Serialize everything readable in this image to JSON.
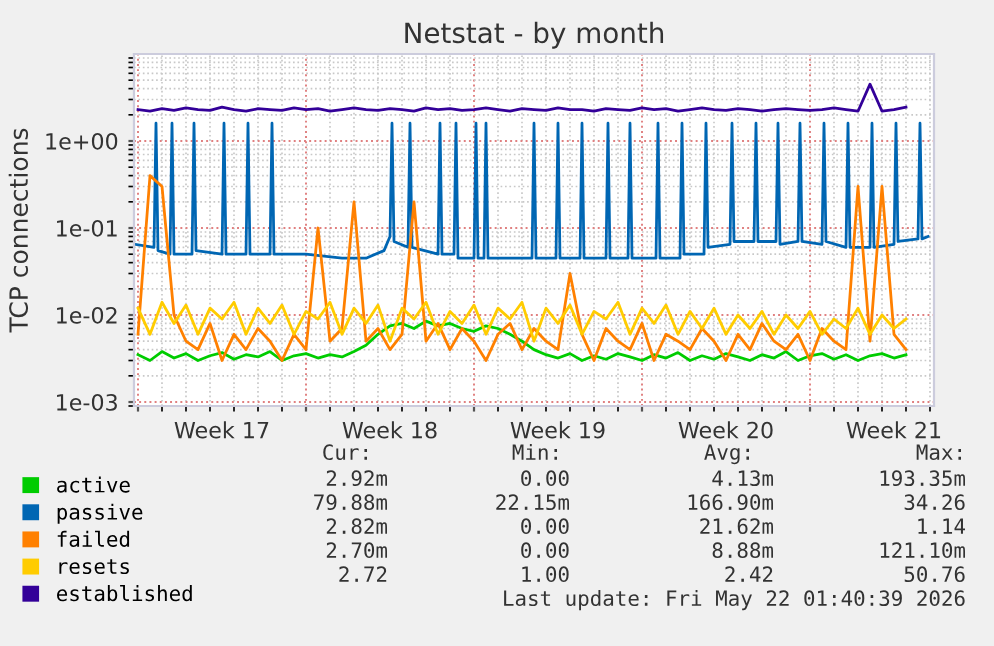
{
  "chart_data": {
    "type": "line",
    "title": "Netstat - by month",
    "ylabel": "TCP connections",
    "log": "y",
    "grid": true,
    "legend": "bottom",
    "marker": "none",
    "line_style": "solid",
    "xlim": [
      "2026-04-19T20:00",
      "2026-05-23T04:00"
    ],
    "xticks": [
      {
        "value": "2026-04-20",
        "label": null
      },
      {
        "value": "2026-04-23T12:00",
        "label": "Week 17"
      },
      {
        "value": "2026-04-27",
        "label": null
      },
      {
        "value": "2026-04-30T12:00",
        "label": "Week 18"
      },
      {
        "value": "2026-05-04",
        "label": null
      },
      {
        "value": "2026-05-07T12:00",
        "label": "Week 19"
      },
      {
        "value": "2026-05-11",
        "label": null
      },
      {
        "value": "2026-05-14T12:00",
        "label": "Week 20"
      },
      {
        "value": "2026-05-18",
        "label": null
      },
      {
        "value": "2026-05-21T12:00",
        "label": "Week 21"
      }
    ],
    "ylim": [
      0.0009,
      10
    ],
    "yticks": [
      {
        "value": 0.001,
        "label": "1e-03"
      },
      {
        "value": 0.01,
        "label": "1e-02"
      },
      {
        "value": 0.1,
        "label": "1e-01"
      },
      {
        "value": 1,
        "label": "1e+00"
      }
    ],
    "x": [
      "2026-04-20T00:00",
      "2026-04-20T12:00",
      "2026-04-21T00:00",
      "2026-04-21T12:00",
      "2026-04-22T00:00",
      "2026-04-22T12:00",
      "2026-04-23T00:00",
      "2026-04-23T12:00",
      "2026-04-24T00:00",
      "2026-04-24T12:00",
      "2026-04-25T00:00",
      "2026-04-25T12:00",
      "2026-04-26T00:00",
      "2026-04-26T12:00",
      "2026-04-27T00:00",
      "2026-04-27T12:00",
      "2026-04-28T00:00",
      "2026-04-28T12:00",
      "2026-04-29T00:00",
      "2026-04-29T12:00",
      "2026-04-30T00:00",
      "2026-04-30T12:00",
      "2026-05-01T00:00",
      "2026-05-01T12:00",
      "2026-05-02T00:00",
      "2026-05-02T12:00",
      "2026-05-03T00:00",
      "2026-05-03T12:00",
      "2026-05-04T00:00",
      "2026-05-04T12:00",
      "2026-05-05T00:00",
      "2026-05-05T12:00",
      "2026-05-06T00:00",
      "2026-05-06T12:00",
      "2026-05-07T00:00",
      "2026-05-07T12:00",
      "2026-05-08T00:00",
      "2026-05-08T12:00",
      "2026-05-09T00:00",
      "2026-05-09T12:00",
      "2026-05-10T00:00",
      "2026-05-10T12:00",
      "2026-05-11T00:00",
      "2026-05-11T12:00",
      "2026-05-12T00:00",
      "2026-05-12T12:00",
      "2026-05-13T00:00",
      "2026-05-13T12:00",
      "2026-05-14T00:00",
      "2026-05-14T12:00",
      "2026-05-15T00:00",
      "2026-05-15T12:00",
      "2026-05-16T00:00",
      "2026-05-16T12:00",
      "2026-05-17T00:00",
      "2026-05-17T12:00",
      "2026-05-18T00:00",
      "2026-05-18T12:00",
      "2026-05-19T00:00",
      "2026-05-19T12:00",
      "2026-05-20T00:00",
      "2026-05-20T12:00",
      "2026-05-21T00:00",
      "2026-05-21T12:00",
      "2026-05-22T00:00"
    ],
    "series": [
      {
        "name": "active",
        "color": "#00cc00",
        "values": [
          0.0035,
          0.003,
          0.0038,
          0.0032,
          0.0036,
          0.003,
          0.0034,
          0.0037,
          0.0031,
          0.0035,
          0.0033,
          0.0038,
          0.003,
          0.0034,
          0.0036,
          0.0032,
          0.0035,
          0.0033,
          0.0038,
          0.0045,
          0.006,
          0.0075,
          0.008,
          0.007,
          0.0085,
          0.0075,
          0.008,
          0.007,
          0.0065,
          0.0075,
          0.007,
          0.006,
          0.005,
          0.004,
          0.0035,
          0.0032,
          0.0036,
          0.003,
          0.0034,
          0.0031,
          0.0036,
          0.0033,
          0.003,
          0.0035,
          0.0032,
          0.0037,
          0.003,
          0.0034,
          0.0031,
          0.0036,
          0.0033,
          0.003,
          0.0035,
          0.0032,
          0.0038,
          0.003,
          0.0034,
          0.0036,
          0.0031,
          0.0035,
          0.003,
          0.0034,
          0.0036,
          0.0032,
          0.0035
        ]
      },
      {
        "name": "passive",
        "color": "#0066b3",
        "x": [
          "2026-04-19T21:00",
          "2026-04-20T16:00",
          "2026-04-20T18:00",
          "2026-04-20T20:00",
          "2026-04-21T08:00",
          "2026-04-21T10:00",
          "2026-04-21T12:00",
          "2026-04-22T06:00",
          "2026-04-22T08:00",
          "2026-04-22T10:00",
          "2026-04-23T12:00",
          "2026-04-23T14:00",
          "2026-04-23T16:00",
          "2026-04-24T12:00",
          "2026-04-24T14:00",
          "2026-04-24T16:00",
          "2026-04-25T12:00",
          "2026-04-25T14:00",
          "2026-04-25T16:00",
          "2026-04-27T00:00",
          "2026-04-28T12:00",
          "2026-04-29T12:00",
          "2026-04-30T06:00",
          "2026-04-30T12:00",
          "2026-04-30T14:00",
          "2026-04-30T16:00",
          "2026-05-01T06:00",
          "2026-05-01T08:00",
          "2026-05-01T10:00",
          "2026-05-02T12:00",
          "2026-05-02T14:00",
          "2026-05-02T16:00",
          "2026-05-03T04:00",
          "2026-05-03T06:00",
          "2026-05-03T08:00",
          "2026-05-04T00:00",
          "2026-05-04T02:00",
          "2026-05-04T04:00",
          "2026-05-04T10:00",
          "2026-05-04T12:00",
          "2026-05-04T14:00",
          "2026-05-06T10:00",
          "2026-05-06T12:00",
          "2026-05-06T14:00",
          "2026-05-07T10:00",
          "2026-05-07T12:00",
          "2026-05-07T14:00",
          "2026-05-08T10:00",
          "2026-05-08T12:00",
          "2026-05-08T14:00",
          "2026-05-09T12:00",
          "2026-05-09T14:00",
          "2026-05-09T16:00",
          "2026-05-10T10:00",
          "2026-05-10T12:00",
          "2026-05-10T14:00",
          "2026-05-11T14:00",
          "2026-05-11T16:00",
          "2026-05-11T18:00",
          "2026-05-12T14:00",
          "2026-05-12T16:00",
          "2026-05-12T18:00",
          "2026-05-13T14:00",
          "2026-05-13T16:00",
          "2026-05-13T18:00",
          "2026-05-14T16:00",
          "2026-05-14T18:00",
          "2026-05-14T20:00",
          "2026-05-15T16:00",
          "2026-05-15T18:00",
          "2026-05-15T20:00",
          "2026-05-16T14:00",
          "2026-05-16T16:00",
          "2026-05-16T18:00",
          "2026-05-17T12:00",
          "2026-05-17T14:00",
          "2026-05-17T16:00",
          "2026-05-18T12:00",
          "2026-05-18T14:00",
          "2026-05-18T16:00",
          "2026-05-19T12:00",
          "2026-05-19T14:00",
          "2026-05-19T16:00",
          "2026-05-20T12:00",
          "2026-05-20T14:00",
          "2026-05-20T16:00",
          "2026-05-21T12:00",
          "2026-05-21T14:00",
          "2026-05-21T16:00",
          "2026-05-22T12:00",
          "2026-05-22T14:00",
          "2026-05-22T16:00",
          "2026-05-22T22:00"
        ],
        "values": [
          0.065,
          0.06,
          1.6,
          0.055,
          0.05,
          1.6,
          0.05,
          0.05,
          1.6,
          0.055,
          0.05,
          1.6,
          0.05,
          0.05,
          1.6,
          0.05,
          0.05,
          1.6,
          0.05,
          0.05,
          0.045,
          0.045,
          0.055,
          0.08,
          1.6,
          0.07,
          0.06,
          1.6,
          0.06,
          0.05,
          1.6,
          0.05,
          0.05,
          1.6,
          0.045,
          0.045,
          1.6,
          0.045,
          0.045,
          1.6,
          0.045,
          0.045,
          1.6,
          0.045,
          0.045,
          1.6,
          0.045,
          0.045,
          1.6,
          0.045,
          0.045,
          1.6,
          0.045,
          0.045,
          1.6,
          0.045,
          0.045,
          1.6,
          0.045,
          0.045,
          1.6,
          0.05,
          0.05,
          1.6,
          0.06,
          0.065,
          1.6,
          0.07,
          0.07,
          1.6,
          0.07,
          0.07,
          1.6,
          0.065,
          0.07,
          1.6,
          0.07,
          0.065,
          1.6,
          0.07,
          0.06,
          1.6,
          0.06,
          0.06,
          1.6,
          0.06,
          0.065,
          1.6,
          0.07,
          0.075,
          1.6,
          0.075,
          0.08
        ]
      },
      {
        "name": "failed",
        "color": "#ff8000",
        "values": [
          0.006,
          0.4,
          0.3,
          0.01,
          0.005,
          0.004,
          0.008,
          0.003,
          0.006,
          0.004,
          0.007,
          0.005,
          0.003,
          0.006,
          0.004,
          0.1,
          0.005,
          0.007,
          0.2,
          0.005,
          0.007,
          0.004,
          0.006,
          0.2,
          0.005,
          0.008,
          0.004,
          0.007,
          0.005,
          0.003,
          0.006,
          0.008,
          0.004,
          0.007,
          0.005,
          0.004,
          0.03,
          0.006,
          0.003,
          0.007,
          0.005,
          0.004,
          0.008,
          0.003,
          0.006,
          0.005,
          0.004,
          0.007,
          0.005,
          0.003,
          0.006,
          0.004,
          0.008,
          0.005,
          0.004,
          0.006,
          0.003,
          0.007,
          0.005,
          0.004,
          0.3,
          0.005,
          0.3,
          0.006,
          0.004
        ]
      },
      {
        "name": "resets",
        "color": "#ffcc00",
        "values": [
          0.012,
          0.006,
          0.014,
          0.008,
          0.013,
          0.006,
          0.012,
          0.009,
          0.014,
          0.006,
          0.012,
          0.008,
          0.013,
          0.006,
          0.011,
          0.009,
          0.014,
          0.006,
          0.012,
          0.008,
          0.013,
          0.005,
          0.012,
          0.009,
          0.014,
          0.006,
          0.011,
          0.008,
          0.013,
          0.006,
          0.012,
          0.009,
          0.014,
          0.005,
          0.012,
          0.008,
          0.013,
          0.006,
          0.011,
          0.009,
          0.014,
          0.006,
          0.012,
          0.008,
          0.013,
          0.006,
          0.011,
          0.007,
          0.012,
          0.006,
          0.01,
          0.007,
          0.011,
          0.006,
          0.01,
          0.007,
          0.011,
          0.006,
          0.009,
          0.007,
          0.012,
          0.006,
          0.01,
          0.007,
          0.009
        ]
      },
      {
        "name": "established",
        "color": "#330099",
        "values": [
          2.3,
          2.2,
          2.35,
          2.25,
          2.4,
          2.3,
          2.25,
          2.45,
          2.3,
          2.2,
          2.35,
          2.3,
          2.25,
          2.4,
          2.3,
          2.35,
          2.2,
          2.3,
          2.4,
          2.3,
          2.25,
          2.35,
          2.3,
          2.2,
          2.4,
          2.3,
          2.35,
          2.25,
          2.3,
          2.4,
          2.3,
          2.2,
          2.35,
          2.3,
          2.25,
          2.4,
          2.3,
          2.3,
          2.2,
          2.35,
          2.3,
          2.25,
          2.4,
          2.3,
          2.35,
          2.2,
          2.3,
          2.4,
          2.3,
          2.25,
          2.35,
          2.3,
          2.2,
          2.3,
          2.35,
          2.3,
          2.25,
          2.3,
          2.4,
          2.3,
          2.2,
          4.5,
          2.2,
          2.3,
          2.45
        ]
      }
    ],
    "annotations": [
      "Cur:",
      "Min:",
      "Avg:",
      "Max:",
      "2.92m",
      "0.00",
      "4.13m",
      "193.35m",
      "79.88m",
      "22.15m",
      "166.90m",
      "34.26",
      "2.82m",
      "0.00",
      "21.62m",
      "1.14",
      "2.70m",
      "0.00",
      "8.88m",
      "121.10m",
      "2.72",
      "1.00",
      "2.42",
      "50.76",
      "Last update: Fri May 22 01:40:39 2026"
    ]
  }
}
